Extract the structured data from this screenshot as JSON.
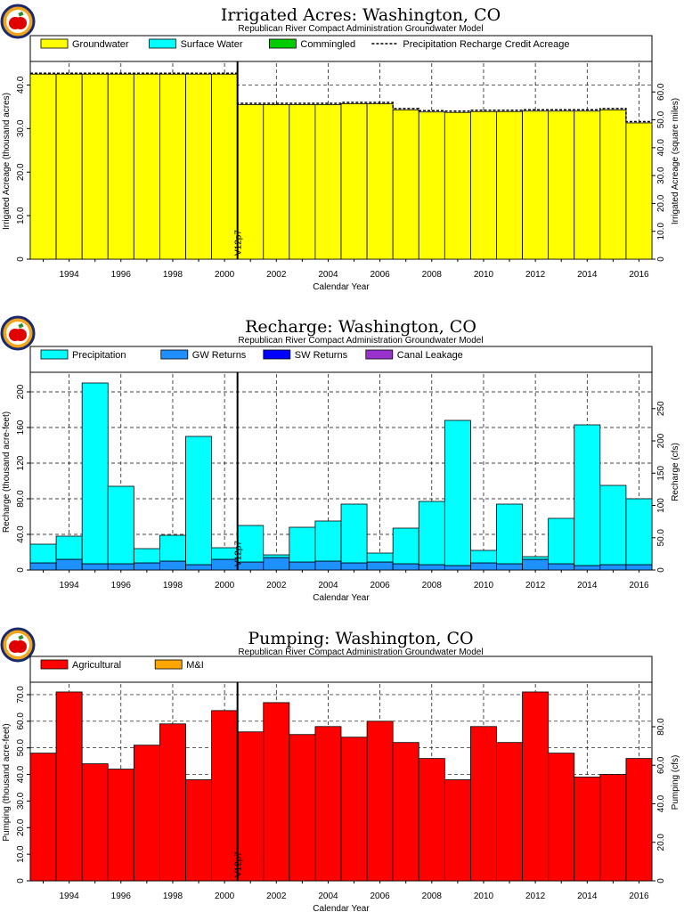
{
  "chart_data": [
    {
      "type": "bar",
      "title": "Irrigated Acres: Washington, CO",
      "subtitle": "Republican River Compact Administration Groundwater Model",
      "xlabel": "Calendar Year",
      "ylabel": "Irrigated Acreage (thousand acres)",
      "y2label": "Irrigated Acreage (square miles)",
      "legend": [
        "Groundwater",
        "Surface Water",
        "Commingled",
        "Precipitation Recharge Credit Acreage"
      ],
      "series_colors": {
        "Groundwater": "#ffff00",
        "Surface Water": "#00ffff",
        "Commingled": "#00cc00"
      },
      "categories": [
        1993,
        1994,
        1995,
        1996,
        1997,
        1998,
        1999,
        2000,
        2001,
        2002,
        2003,
        2004,
        2005,
        2006,
        2007,
        2008,
        2009,
        2010,
        2011,
        2012,
        2013,
        2014,
        2015,
        2016
      ],
      "series": [
        {
          "name": "Groundwater",
          "values": [
            42.5,
            42.5,
            42.5,
            42.5,
            42.5,
            42.5,
            42.5,
            42.5,
            35.5,
            35.5,
            35.5,
            35.5,
            35.7,
            35.7,
            34.3,
            33.8,
            33.7,
            33.9,
            33.9,
            34.0,
            34.0,
            34.0,
            34.3,
            31.3
          ]
        }
      ],
      "overlay_line": {
        "name": "Precipitation Recharge Credit Acreage",
        "values": [
          42.7,
          42.7,
          42.7,
          42.7,
          42.7,
          42.7,
          42.7,
          42.7,
          35.8,
          35.8,
          35.8,
          35.8,
          36.0,
          36.0,
          34.6,
          34.1,
          34.0,
          34.2,
          34.2,
          34.3,
          34.3,
          34.3,
          34.6,
          31.6
        ]
      },
      "ylim": [
        0,
        45
      ],
      "yticks": [
        "0",
        "10.0",
        "20.0",
        "30.0",
        "40.0"
      ],
      "y2ticks": [
        "0",
        "10.0",
        "20.0",
        "30.0",
        "40.0",
        "50.0",
        "60.0"
      ],
      "xticks": [
        "1994",
        "1996",
        "1998",
        "2000",
        "2002",
        "2004",
        "2006",
        "2008",
        "2010",
        "2012",
        "2014",
        "2016"
      ],
      "marker": {
        "label": "V12p7",
        "year": 2000.5
      }
    },
    {
      "type": "bar",
      "title": "Recharge: Washington, CO",
      "subtitle": "Republican River Compact Administration Groundwater Model",
      "xlabel": "Calendar Year",
      "ylabel": "Recharge (thousand acre-feet)",
      "y2label": "Recharge (cfs)",
      "legend": [
        "Precipitation",
        "GW Returns",
        "SW Returns",
        "Canal Leakage"
      ],
      "series_colors": {
        "Precipitation": "#00ffff",
        "GW Returns": "#1e90ff",
        "SW Returns": "#0000ff",
        "Canal Leakage": "#9932cc"
      },
      "categories": [
        1993,
        1994,
        1995,
        1996,
        1997,
        1998,
        1999,
        2000,
        2001,
        2002,
        2003,
        2004,
        2005,
        2006,
        2007,
        2008,
        2009,
        2010,
        2011,
        2012,
        2013,
        2014,
        2015,
        2016
      ],
      "series": [
        {
          "name": "GW Returns",
          "values": [
            8,
            12,
            7,
            7,
            8,
            10,
            6,
            12,
            9,
            14,
            9,
            10,
            8,
            9,
            7,
            6,
            5,
            8,
            7,
            12,
            7,
            5,
            6,
            6
          ]
        },
        {
          "name": "Precipitation",
          "values": [
            21,
            26,
            203,
            87,
            16,
            29,
            144,
            13,
            41,
            3,
            39,
            45,
            66,
            10,
            40,
            71,
            163,
            14,
            67,
            3,
            51,
            158,
            89,
            74
          ]
        }
      ],
      "ylim": [
        0,
        220
      ],
      "yticks": [
        "0",
        "40.0",
        "80.0",
        "120",
        "160",
        "200"
      ],
      "y2ticks": [
        "0",
        "50.0",
        "100",
        "150",
        "200",
        "250"
      ],
      "xticks": [
        "1994",
        "1996",
        "1998",
        "2000",
        "2002",
        "2004",
        "2006",
        "2008",
        "2010",
        "2012",
        "2014",
        "2016"
      ],
      "marker": {
        "label": "V12p7",
        "year": 2000.5
      }
    },
    {
      "type": "bar",
      "title": "Pumping: Washington, CO",
      "subtitle": "Republican River Compact Administration Groundwater Model",
      "xlabel": "Calendar Year",
      "ylabel": "Pumping (thousand acre-feet)",
      "y2label": "Pumping (cfs)",
      "legend": [
        "Agricultural",
        "M&I"
      ],
      "series_colors": {
        "Agricultural": "#ff0000",
        "M&I": "#ffa500"
      },
      "categories": [
        1993,
        1994,
        1995,
        1996,
        1997,
        1998,
        1999,
        2000,
        2001,
        2002,
        2003,
        2004,
        2005,
        2006,
        2007,
        2008,
        2009,
        2010,
        2011,
        2012,
        2013,
        2014,
        2015,
        2016
      ],
      "series": [
        {
          "name": "Agricultural",
          "values": [
            48,
            71,
            44,
            42,
            51,
            59,
            38,
            64,
            56,
            67,
            55,
            58,
            54,
            60,
            52,
            46,
            38,
            58,
            52,
            71,
            48,
            39,
            40,
            46
          ]
        }
      ],
      "ylim": [
        0,
        74
      ],
      "yticks": [
        "0",
        "10.0",
        "20.0",
        "30.0",
        "40.0",
        "50.0",
        "60.0",
        "70.0"
      ],
      "y2ticks": [
        "0",
        "20.0",
        "40.0",
        "60.0",
        "80.0"
      ],
      "xticks": [
        "1994",
        "1996",
        "1998",
        "2000",
        "2002",
        "2004",
        "2006",
        "2008",
        "2010",
        "2012",
        "2014",
        "2016"
      ],
      "marker": {
        "label": "V12p7",
        "year": 2000.5
      }
    }
  ]
}
